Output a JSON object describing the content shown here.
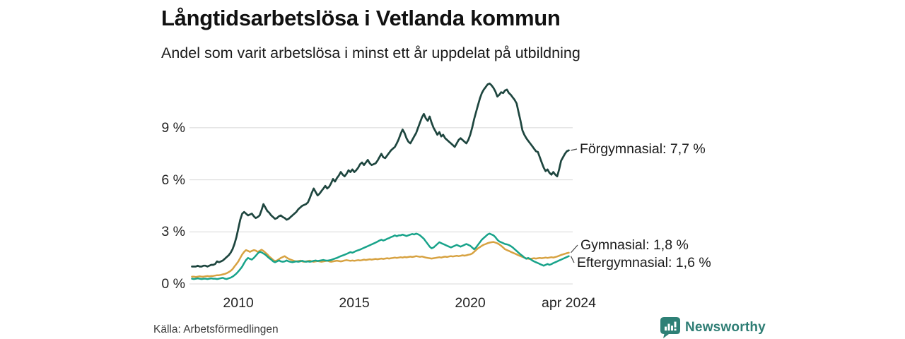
{
  "header": {
    "title": "Långtidsarbetslösa i Vetlanda kommun",
    "subtitle": "Andel som varit arbetslösa i minst ett år uppdelat på utbildning"
  },
  "footer": {
    "source": "Källa: Arbetsförmedlingen",
    "brand": "Newsworthy",
    "brand_color": "#2f7e75"
  },
  "chart_data": {
    "type": "line",
    "title": "Långtidsarbetslösa i Vetlanda kommun",
    "subtitle": "Andel som varit arbetslösa i minst ett år uppdelat på utbildning",
    "unit": "%",
    "x_start": 2008.0,
    "x_end": 2024.25,
    "x_step": "monthly",
    "x_ticks": [
      {
        "label": "2010",
        "t": 2010
      },
      {
        "label": "2015",
        "t": 2015
      },
      {
        "label": "2020",
        "t": 2020
      },
      {
        "label": "apr 2024",
        "t": 2024.25
      }
    ],
    "y_ticks": [
      {
        "label": "0 %",
        "v": 0
      },
      {
        "label": "3 %",
        "v": 3
      },
      {
        "label": "6 %",
        "v": 6
      },
      {
        "label": "9 %",
        "v": 9
      }
    ],
    "ylim": [
      0,
      12
    ],
    "grid": "horizontal",
    "grid_color": "#d8d8d8",
    "legend_position": "end-of-line-labels",
    "series": [
      {
        "name": "Förgymnasial",
        "color": "#1e463f",
        "end_value": 7.7,
        "end_label": "Förgymnasial: 7,7 %",
        "values": [
          1.0,
          1.0,
          1.0,
          1.05,
          1.0,
          1.0,
          1.05,
          1.05,
          1.0,
          1.05,
          1.1,
          1.1,
          1.15,
          1.3,
          1.25,
          1.3,
          1.35,
          1.45,
          1.55,
          1.65,
          1.8,
          2.0,
          2.3,
          2.7,
          3.2,
          3.7,
          4.05,
          4.15,
          4.05,
          3.95,
          4.0,
          4.05,
          3.9,
          3.8,
          3.85,
          3.95,
          4.25,
          4.6,
          4.4,
          4.2,
          4.1,
          3.95,
          3.85,
          3.75,
          3.8,
          3.9,
          3.95,
          3.85,
          3.8,
          3.7,
          3.75,
          3.85,
          3.95,
          4.05,
          4.15,
          4.3,
          4.4,
          4.5,
          4.55,
          4.6,
          4.7,
          4.95,
          5.25,
          5.5,
          5.3,
          5.1,
          5.2,
          5.35,
          5.5,
          5.65,
          5.5,
          5.6,
          5.8,
          6.05,
          5.9,
          6.1,
          6.25,
          6.45,
          6.3,
          6.2,
          6.35,
          6.55,
          6.45,
          6.6,
          6.45,
          6.55,
          6.7,
          6.9,
          7.0,
          6.85,
          7.0,
          7.15,
          6.95,
          6.85,
          6.9,
          6.95,
          7.1,
          7.3,
          7.5,
          7.3,
          7.25,
          7.4,
          7.55,
          7.7,
          7.8,
          7.9,
          8.1,
          8.35,
          8.65,
          8.9,
          8.7,
          8.4,
          8.2,
          8.1,
          8.3,
          8.5,
          8.7,
          9.0,
          9.3,
          9.6,
          9.8,
          9.55,
          9.4,
          9.65,
          9.3,
          9.0,
          8.8,
          8.6,
          8.75,
          8.5,
          8.6,
          8.4,
          8.3,
          8.2,
          8.1,
          8.0,
          7.9,
          8.1,
          8.3,
          8.4,
          8.3,
          8.2,
          8.1,
          8.3,
          8.6,
          9.0,
          9.5,
          9.9,
          10.3,
          10.7,
          11.0,
          11.2,
          11.35,
          11.5,
          11.55,
          11.45,
          11.3,
          11.1,
          10.8,
          10.9,
          11.05,
          11.0,
          11.15,
          11.2,
          11.0,
          10.9,
          10.75,
          10.6,
          10.4,
          9.9,
          9.4,
          8.85,
          8.6,
          8.4,
          8.25,
          8.1,
          7.95,
          7.8,
          7.65,
          7.6,
          7.3,
          7.0,
          6.7,
          6.5,
          6.6,
          6.4,
          6.3,
          6.45,
          6.3,
          6.2,
          6.6,
          7.1,
          7.3,
          7.5,
          7.65,
          7.7
        ]
      },
      {
        "name": "Gymnasial",
        "color": "#d7a241",
        "end_value": 1.8,
        "end_label": "Gymnasial: 1,8 %",
        "values": [
          0.42,
          0.42,
          0.4,
          0.42,
          0.44,
          0.42,
          0.42,
          0.44,
          0.45,
          0.44,
          0.45,
          0.46,
          0.48,
          0.5,
          0.5,
          0.52,
          0.55,
          0.58,
          0.62,
          0.68,
          0.75,
          0.85,
          1.0,
          1.15,
          1.3,
          1.5,
          1.7,
          1.85,
          1.95,
          1.9,
          1.85,
          1.9,
          1.95,
          1.92,
          1.85,
          1.9,
          1.97,
          1.9,
          1.8,
          1.7,
          1.58,
          1.48,
          1.38,
          1.32,
          1.35,
          1.42,
          1.5,
          1.55,
          1.6,
          1.52,
          1.45,
          1.4,
          1.36,
          1.32,
          1.3,
          1.32,
          1.34,
          1.3,
          1.28,
          1.3,
          1.32,
          1.34,
          1.3,
          1.28,
          1.3,
          1.32,
          1.3,
          1.28,
          1.3,
          1.32,
          1.34,
          1.3,
          1.28,
          1.3,
          1.32,
          1.34,
          1.32,
          1.3,
          1.32,
          1.35,
          1.37,
          1.35,
          1.33,
          1.35,
          1.33,
          1.35,
          1.37,
          1.35,
          1.37,
          1.4,
          1.38,
          1.4,
          1.42,
          1.4,
          1.42,
          1.44,
          1.42,
          1.44,
          1.46,
          1.44,
          1.46,
          1.48,
          1.46,
          1.48,
          1.5,
          1.52,
          1.5,
          1.52,
          1.54,
          1.52,
          1.55,
          1.53,
          1.55,
          1.57,
          1.55,
          1.57,
          1.6,
          1.58,
          1.56,
          1.58,
          1.55,
          1.52,
          1.5,
          1.48,
          1.46,
          1.48,
          1.5,
          1.52,
          1.54,
          1.52,
          1.55,
          1.57,
          1.55,
          1.58,
          1.6,
          1.58,
          1.6,
          1.62,
          1.6,
          1.62,
          1.65,
          1.63,
          1.65,
          1.68,
          1.7,
          1.75,
          1.85,
          1.95,
          2.05,
          2.12,
          2.2,
          2.26,
          2.3,
          2.35,
          2.38,
          2.4,
          2.42,
          2.38,
          2.34,
          2.28,
          2.2,
          2.1,
          2.0,
          1.95,
          1.9,
          1.85,
          1.8,
          1.75,
          1.7,
          1.65,
          1.6,
          1.56,
          1.52,
          1.47,
          1.45,
          1.44,
          1.46,
          1.48,
          1.46,
          1.48,
          1.5,
          1.48,
          1.5,
          1.52,
          1.5,
          1.52,
          1.54,
          1.52,
          1.55,
          1.58,
          1.62,
          1.67,
          1.7,
          1.74,
          1.77,
          1.8
        ]
      },
      {
        "name": "Eftergymnasial",
        "color": "#18a38a",
        "end_value": 1.6,
        "end_label": "Eftergymnasial: 1,6 %",
        "values": [
          0.3,
          0.28,
          0.3,
          0.32,
          0.3,
          0.28,
          0.3,
          0.3,
          0.28,
          0.3,
          0.32,
          0.3,
          0.3,
          0.28,
          0.3,
          0.33,
          0.35,
          0.3,
          0.28,
          0.32,
          0.36,
          0.42,
          0.5,
          0.6,
          0.72,
          0.85,
          1.0,
          1.2,
          1.38,
          1.5,
          1.44,
          1.4,
          1.5,
          1.62,
          1.75,
          1.85,
          1.82,
          1.75,
          1.68,
          1.58,
          1.48,
          1.4,
          1.3,
          1.25,
          1.3,
          1.35,
          1.3,
          1.28,
          1.3,
          1.35,
          1.3,
          1.27,
          1.25,
          1.28,
          1.3,
          1.28,
          1.3,
          1.33,
          1.3,
          1.28,
          1.3,
          1.28,
          1.3,
          1.33,
          1.35,
          1.32,
          1.34,
          1.36,
          1.38,
          1.35,
          1.34,
          1.36,
          1.38,
          1.42,
          1.46,
          1.5,
          1.55,
          1.6,
          1.64,
          1.68,
          1.73,
          1.78,
          1.83,
          1.8,
          1.85,
          1.9,
          1.94,
          1.98,
          2.03,
          2.08,
          2.13,
          2.18,
          2.23,
          2.28,
          2.33,
          2.38,
          2.44,
          2.5,
          2.55,
          2.5,
          2.54,
          2.6,
          2.64,
          2.7,
          2.74,
          2.8,
          2.75,
          2.8,
          2.8,
          2.84,
          2.8,
          2.76,
          2.8,
          2.84,
          2.88,
          2.85,
          2.9,
          2.86,
          2.8,
          2.7,
          2.6,
          2.45,
          2.3,
          2.15,
          2.05,
          2.1,
          2.2,
          2.3,
          2.4,
          2.35,
          2.3,
          2.25,
          2.2,
          2.15,
          2.1,
          2.15,
          2.2,
          2.25,
          2.2,
          2.15,
          2.2,
          2.25,
          2.3,
          2.25,
          2.2,
          2.1,
          2.0,
          2.1,
          2.25,
          2.4,
          2.55,
          2.65,
          2.75,
          2.85,
          2.9,
          2.85,
          2.8,
          2.7,
          2.55,
          2.45,
          2.4,
          2.35,
          2.3,
          2.28,
          2.24,
          2.18,
          2.1,
          2.0,
          1.9,
          1.8,
          1.7,
          1.62,
          1.52,
          1.45,
          1.5,
          1.44,
          1.36,
          1.3,
          1.25,
          1.2,
          1.15,
          1.1,
          1.05,
          1.1,
          1.15,
          1.1,
          1.14,
          1.2,
          1.25,
          1.3,
          1.35,
          1.4,
          1.45,
          1.5,
          1.55,
          1.6
        ]
      }
    ]
  }
}
